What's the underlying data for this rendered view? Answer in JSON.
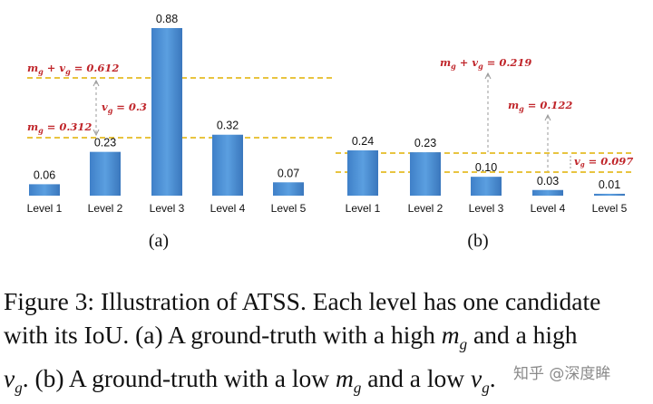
{
  "chart_data": [
    {
      "type": "bar",
      "panel_label": "(a)",
      "categories": [
        "Level 1",
        "Level 2",
        "Level 3",
        "Level 4",
        "Level 5"
      ],
      "values": [
        0.06,
        0.23,
        0.88,
        0.32,
        0.07
      ],
      "value_labels": [
        "0.06",
        "0.23",
        "0.88",
        "0.32",
        "0.07"
      ],
      "bar_color": "#4a8fd6",
      "ylim": [
        0,
        0.88
      ],
      "reference_lines": [
        {
          "label": "m_g + v_g = 0.612",
          "value": 0.612,
          "color": "#e0b000"
        },
        {
          "label": "m_g = 0.312",
          "value": 0.312,
          "color": "#e0b000"
        }
      ],
      "annotation": {
        "label": "v_g = 0.3"
      }
    },
    {
      "type": "bar",
      "panel_label": "(b)",
      "categories": [
        "Level 1",
        "Level 2",
        "Level 3",
        "Level 4",
        "Level 5"
      ],
      "values": [
        0.24,
        0.23,
        0.1,
        0.03,
        0.01
      ],
      "value_labels": [
        "0.24",
        "0.23",
        "0.10",
        "0.03",
        "0.01"
      ],
      "bar_color": "#4a8fd6",
      "ylim": [
        0,
        0.24
      ],
      "reference_lines": [
        {
          "label": "m_g + v_g = 0.219",
          "value": 0.219,
          "color": "#e0b000"
        },
        {
          "label": "m_g = 0.122",
          "value": 0.122,
          "color": "#e0b000"
        }
      ],
      "annotation": {
        "label": "v_g = 0.097"
      }
    }
  ],
  "caption": {
    "line1": "Figure 3: Illustration of ATSS. Each level has one candidate",
    "line2_a": "with its IoU. (a) A ground-truth with a high ",
    "line2_b": " and a high",
    "line3_a": ". (b) A ground-truth with a low ",
    "line3_b": " and a low "
  },
  "watermark": "知乎 @深度眸"
}
